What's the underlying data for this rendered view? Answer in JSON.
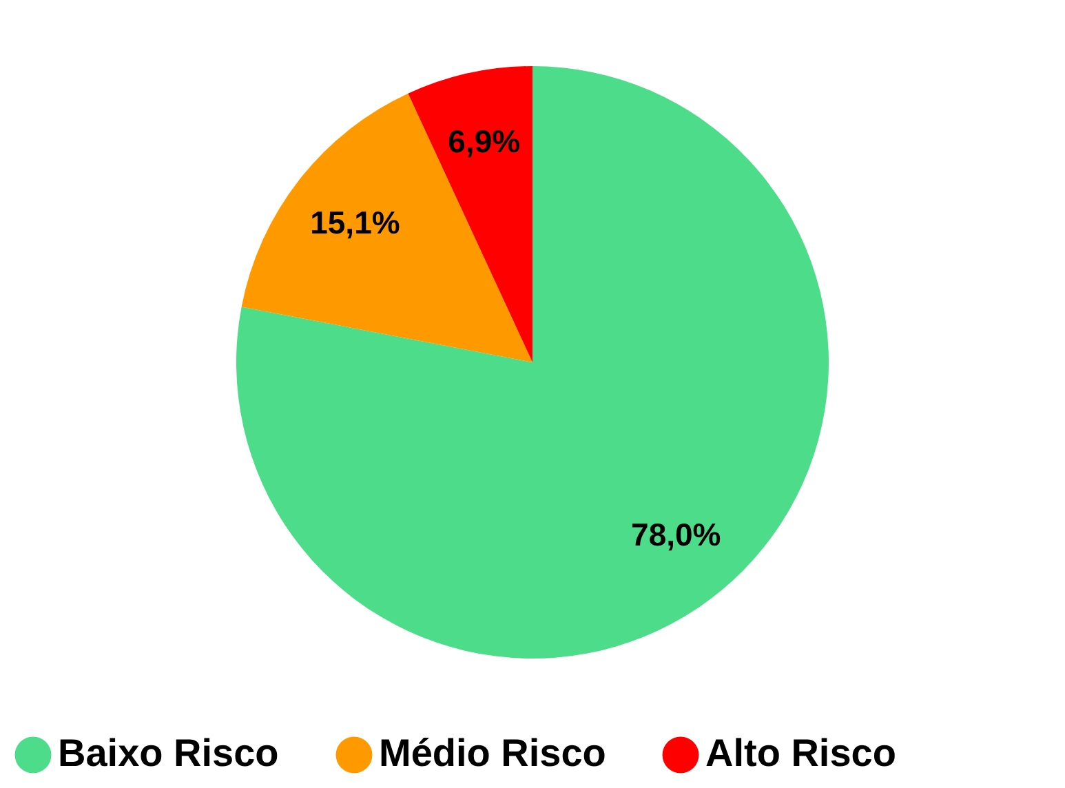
{
  "chart_data": {
    "type": "pie",
    "categories": [
      "Baixo Risco",
      "Médio Risco",
      "Alto Risco"
    ],
    "values": [
      78.0,
      15.1,
      6.9
    ],
    "colors": [
      "#4cdc8a",
      "#ff9900",
      "#ff0000"
    ],
    "value_labels": [
      "78,0%",
      "15,1%",
      "6,9%"
    ],
    "legend": "bottom"
  }
}
